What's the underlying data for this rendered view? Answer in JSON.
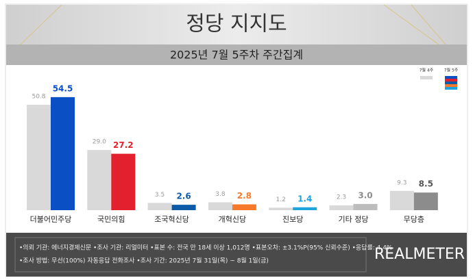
{
  "chart_data": {
    "type": "bar",
    "title": "정당 지지도",
    "subtitle": "2025년 7월 5주차 주간집계",
    "categories": [
      "더불어민주당",
      "국민의힘",
      "조국혁신당",
      "개혁신당",
      "진보당",
      "기타 정당",
      "무당층"
    ],
    "series": [
      {
        "name": "7월 4주",
        "color": "#d9d9d9",
        "label_color": "#9a9a9a",
        "values": [
          50.8,
          29.0,
          3.5,
          3.8,
          1.2,
          2.3,
          9.3
        ],
        "value_labels": [
          "50.8",
          "29.0",
          "3.5",
          "3.8",
          "1.2",
          "2.3",
          "9.3"
        ]
      },
      {
        "name": "7월 5주",
        "colors": [
          "#0b4fc4",
          "#e3202d",
          "#0d5aa7",
          "#f7792a",
          "#1ea3dc",
          "#bdbdbd",
          "#8c8c8c"
        ],
        "label_colors": [
          "#0b4fc4",
          "#e3202d",
          "#0d5aa7",
          "#f7792a",
          "#1ea3dc",
          "#8c8c8c",
          "#555555"
        ],
        "values": [
          54.5,
          27.2,
          2.6,
          2.8,
          1.4,
          3.0,
          8.5
        ],
        "value_labels": [
          "54.5",
          "27.2",
          "2.6",
          "2.8",
          "1.4",
          "3.0",
          "8.5"
        ]
      }
    ],
    "legend": "top-right",
    "notes": [
      "•의뢰 기관: 에너지경제신문   •조사 기관: 리얼미터   •표본 수: 전국 만 18세 이상 1,012명  •표본오차: ±3.1%P(95% 신뢰수준)  •응답률: 4.4%",
      "•조사 방법: 무선(100%) 자동응답 전화조사   •조사 기간: 2025년 7월 31일(목) ~ 8월 1일(금)"
    ],
    "brand": "REALMETER"
  }
}
